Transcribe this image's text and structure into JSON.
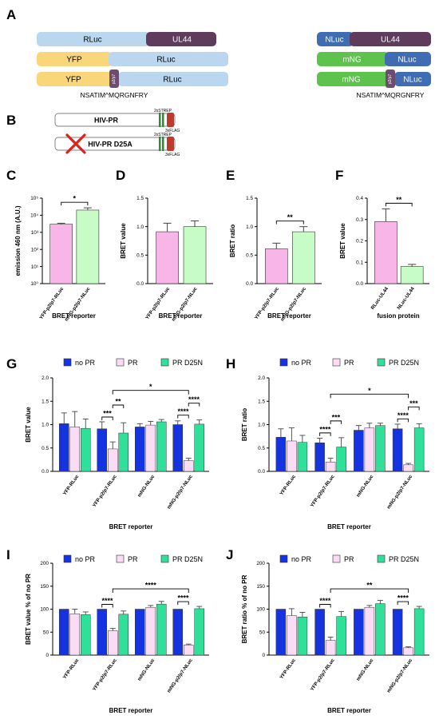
{
  "panels": {
    "A": "A",
    "B": "B",
    "C": "C",
    "D": "D",
    "E": "E",
    "F": "F",
    "G": "G",
    "H": "H",
    "I": "I",
    "J": "J"
  },
  "colors": {
    "rluc": "#bad7ef",
    "ul44": "#5f3b5c",
    "yfp": "#fad67a",
    "nluc": "#3f6cb3",
    "mng": "#5ec34c",
    "linker": "#6e4c70",
    "pink": "#f7b5e8",
    "green": "#c8fcc6",
    "pink_light": "#fadcf4",
    "no_pr": "#1633e0",
    "pr_d25n": "#30e09a",
    "axis": "#000000",
    "err": "#444444"
  },
  "constructs": {
    "rluc": "RLuc",
    "ul44": "UL44",
    "yfp": "YFP",
    "nluc": "NLuc",
    "mng": "mNG",
    "cleavage_site": "NSATIM^MQRGNFRY",
    "linker_label": "p2/p7"
  },
  "panel_b": {
    "pr_label": "HIV-PR",
    "d25a_label": "HIV-PR D25A",
    "strep_label": "2xSTREP",
    "flag_label": "3xFLAG",
    "cross_icon": "x-icon"
  },
  "chart_data": [
    {
      "id": "C",
      "type": "bar",
      "categories": [
        "YFP-p2/p7-RLuc",
        "mNG-p2/p7-NLuc"
      ],
      "values": [
        3000,
        20000
      ],
      "errors": [
        400,
        7000
      ],
      "ylabel": "emission 460 nm (A.U.)",
      "xlabel": "BRET reporter",
      "yscale": "log",
      "ylim": [
        1,
        100000
      ],
      "ticks": [
        "10⁰",
        "10¹",
        "10²",
        "10³",
        "10⁴",
        "10⁵"
      ],
      "grid": false,
      "significance": [
        {
          "pair": [
            0,
            1
          ],
          "label": "*"
        }
      ]
    },
    {
      "id": "D",
      "type": "bar",
      "categories": [
        "YFP-p2/p7-RLuc",
        "mNG-p2/p7-NLuc"
      ],
      "values": [
        0.91,
        1.0
      ],
      "errors": [
        0.15,
        0.1
      ],
      "ylabel": "BRET value",
      "xlabel": "BRET reporter",
      "ylim": [
        0,
        1.5
      ],
      "ticks": [
        "0.0",
        "0.5",
        "1.0",
        "1.5"
      ],
      "grid": false
    },
    {
      "id": "E",
      "type": "bar",
      "categories": [
        "YFP-p2/p7-RLuc",
        "mNG-p2/p7-NLuc"
      ],
      "values": [
        0.61,
        0.91
      ],
      "errors": [
        0.1,
        0.09
      ],
      "ylabel": "BRET ratio",
      "xlabel": "BRET reporter",
      "ylim": [
        0,
        1.5
      ],
      "ticks": [
        "0.0",
        "0.5",
        "1.0",
        "1.5"
      ],
      "grid": false,
      "significance": [
        {
          "pair": [
            0,
            1
          ],
          "label": "**"
        }
      ]
    },
    {
      "id": "F",
      "type": "bar",
      "categories": [
        "RLuc-UL44",
        "NLuc-UL44"
      ],
      "values": [
        0.29,
        0.08
      ],
      "errors": [
        0.06,
        0.01
      ],
      "ylabel": "BRET value",
      "xlabel": "fusion protein",
      "ylim": [
        0,
        0.4
      ],
      "ticks": [
        "0.0",
        "0.1",
        "0.2",
        "0.3",
        "0.4"
      ],
      "grid": false,
      "significance": [
        {
          "pair": [
            0,
            1
          ],
          "label": "**"
        }
      ]
    },
    {
      "id": "G",
      "type": "bar",
      "categories": [
        "YFP-RLuc",
        "YFP-p2/p7-RLuc",
        "mNG-NLuc",
        "mNG-p2/p7-NLuc"
      ],
      "series": [
        {
          "name": "no PR",
          "values": [
            1.02,
            0.91,
            0.95,
            1.0
          ],
          "errors": [
            0.23,
            0.15,
            0.07,
            0.08
          ]
        },
        {
          "name": "PR",
          "values": [
            0.95,
            0.48,
            0.99,
            0.23
          ],
          "errors": [
            0.33,
            0.15,
            0.08,
            0.05
          ]
        },
        {
          "name": "PR D25N",
          "values": [
            0.92,
            0.82,
            1.06,
            1.01
          ],
          "errors": [
            0.2,
            0.22,
            0.05,
            0.09
          ]
        }
      ],
      "ylabel": "BRET value",
      "xlabel": "BRET  reporter",
      "ylim": [
        0,
        2.0
      ],
      "ticks": [
        "0.0",
        "0.5",
        "1.0",
        "1.5",
        "2.0"
      ],
      "grid": false,
      "significance": [
        {
          "from": [
            1,
            0
          ],
          "to": [
            1,
            1
          ],
          "label": "***"
        },
        {
          "from": [
            1,
            1
          ],
          "to": [
            1,
            2
          ],
          "label": "**"
        },
        {
          "from": [
            3,
            0
          ],
          "to": [
            3,
            1
          ],
          "label": "****"
        },
        {
          "from": [
            3,
            1
          ],
          "to": [
            3,
            2
          ],
          "label": "****"
        },
        {
          "from": [
            1,
            1
          ],
          "to": [
            3,
            1
          ],
          "label": "*"
        }
      ]
    },
    {
      "id": "H",
      "type": "bar",
      "categories": [
        "YFP-RLuc",
        "YFP-p2/p7-RLuc",
        "mNG-NLuc",
        "mNG-p2/p7-NLuc"
      ],
      "series": [
        {
          "name": "no PR",
          "values": [
            0.73,
            0.61,
            0.88,
            0.91
          ],
          "errors": [
            0.18,
            0.1,
            0.1,
            0.1
          ]
        },
        {
          "name": "PR",
          "values": [
            0.65,
            0.2,
            0.93,
            0.14
          ],
          "errors": [
            0.28,
            0.08,
            0.1,
            0.03
          ]
        },
        {
          "name": "PR D25N",
          "values": [
            0.62,
            0.52,
            0.98,
            0.93
          ],
          "errors": [
            0.15,
            0.2,
            0.05,
            0.09
          ]
        }
      ],
      "ylabel": "BRET ratio",
      "xlabel": "BRET  reporter",
      "ylim": [
        0,
        2.0
      ],
      "ticks": [
        "0.0",
        "0.5",
        "1.0",
        "1.5",
        "2.0"
      ],
      "grid": false,
      "significance": [
        {
          "from": [
            1,
            0
          ],
          "to": [
            1,
            1
          ],
          "label": "****"
        },
        {
          "from": [
            1,
            1
          ],
          "to": [
            1,
            2
          ],
          "label": "***"
        },
        {
          "from": [
            3,
            0
          ],
          "to": [
            3,
            1
          ],
          "label": "****"
        },
        {
          "from": [
            3,
            1
          ],
          "to": [
            3,
            2
          ],
          "label": "***"
        },
        {
          "from": [
            1,
            1
          ],
          "to": [
            3,
            1
          ],
          "label": "*"
        }
      ]
    },
    {
      "id": "I",
      "type": "bar",
      "categories": [
        "YFP-RLuc",
        "YFP-p2/p7-RLuc",
        "mNG-NLuc",
        "mNG-p2/p7-NLuc"
      ],
      "series": [
        {
          "name": "no PR",
          "values": [
            100,
            100,
            100,
            100
          ],
          "errors": [
            0,
            0,
            0,
            0
          ]
        },
        {
          "name": "PR",
          "values": [
            90,
            53,
            104,
            22
          ],
          "errors": [
            10,
            5,
            4,
            2
          ]
        },
        {
          "name": "PR D25N",
          "values": [
            88,
            89,
            111,
            101
          ],
          "errors": [
            6,
            7,
            6,
            5
          ]
        }
      ],
      "ylabel": "BRET value  % of no PR",
      "xlabel": "BRET reporter",
      "ylim": [
        0,
        200
      ],
      "ticks": [
        "0",
        "50",
        "100",
        "150",
        "200"
      ],
      "grid": false,
      "significance": [
        {
          "from": [
            1,
            0
          ],
          "to": [
            1,
            1
          ],
          "label": "****"
        },
        {
          "from": [
            3,
            0
          ],
          "to": [
            3,
            1
          ],
          "label": "****"
        },
        {
          "from": [
            1,
            1
          ],
          "to": [
            3,
            1
          ],
          "label": "****"
        }
      ]
    },
    {
      "id": "J",
      "type": "bar",
      "categories": [
        "YFP-RLuc",
        "YFP-p2/p7-RLuc",
        "mNG-NLuc",
        "mNG-p2/p7-NLuc"
      ],
      "series": [
        {
          "name": "no PR",
          "values": [
            100,
            100,
            100,
            100
          ],
          "errors": [
            0,
            0,
            0,
            0
          ]
        },
        {
          "name": "PR",
          "values": [
            86,
            32,
            104,
            16
          ],
          "errors": [
            15,
            7,
            4,
            2
          ]
        },
        {
          "name": "PR D25N",
          "values": [
            83,
            84,
            112,
            101
          ],
          "errors": [
            10,
            11,
            7,
            5
          ]
        }
      ],
      "ylabel": "BRET ratio  % of no PR",
      "xlabel": "BRET  reporter",
      "ylim": [
        0,
        200
      ],
      "ticks": [
        "0",
        "50",
        "100",
        "150",
        "200"
      ],
      "grid": false,
      "significance": [
        {
          "from": [
            1,
            0
          ],
          "to": [
            1,
            1
          ],
          "label": "****"
        },
        {
          "from": [
            3,
            0
          ],
          "to": [
            3,
            1
          ],
          "label": "****"
        },
        {
          "from": [
            1,
            1
          ],
          "to": [
            3,
            1
          ],
          "label": "**"
        }
      ]
    }
  ]
}
